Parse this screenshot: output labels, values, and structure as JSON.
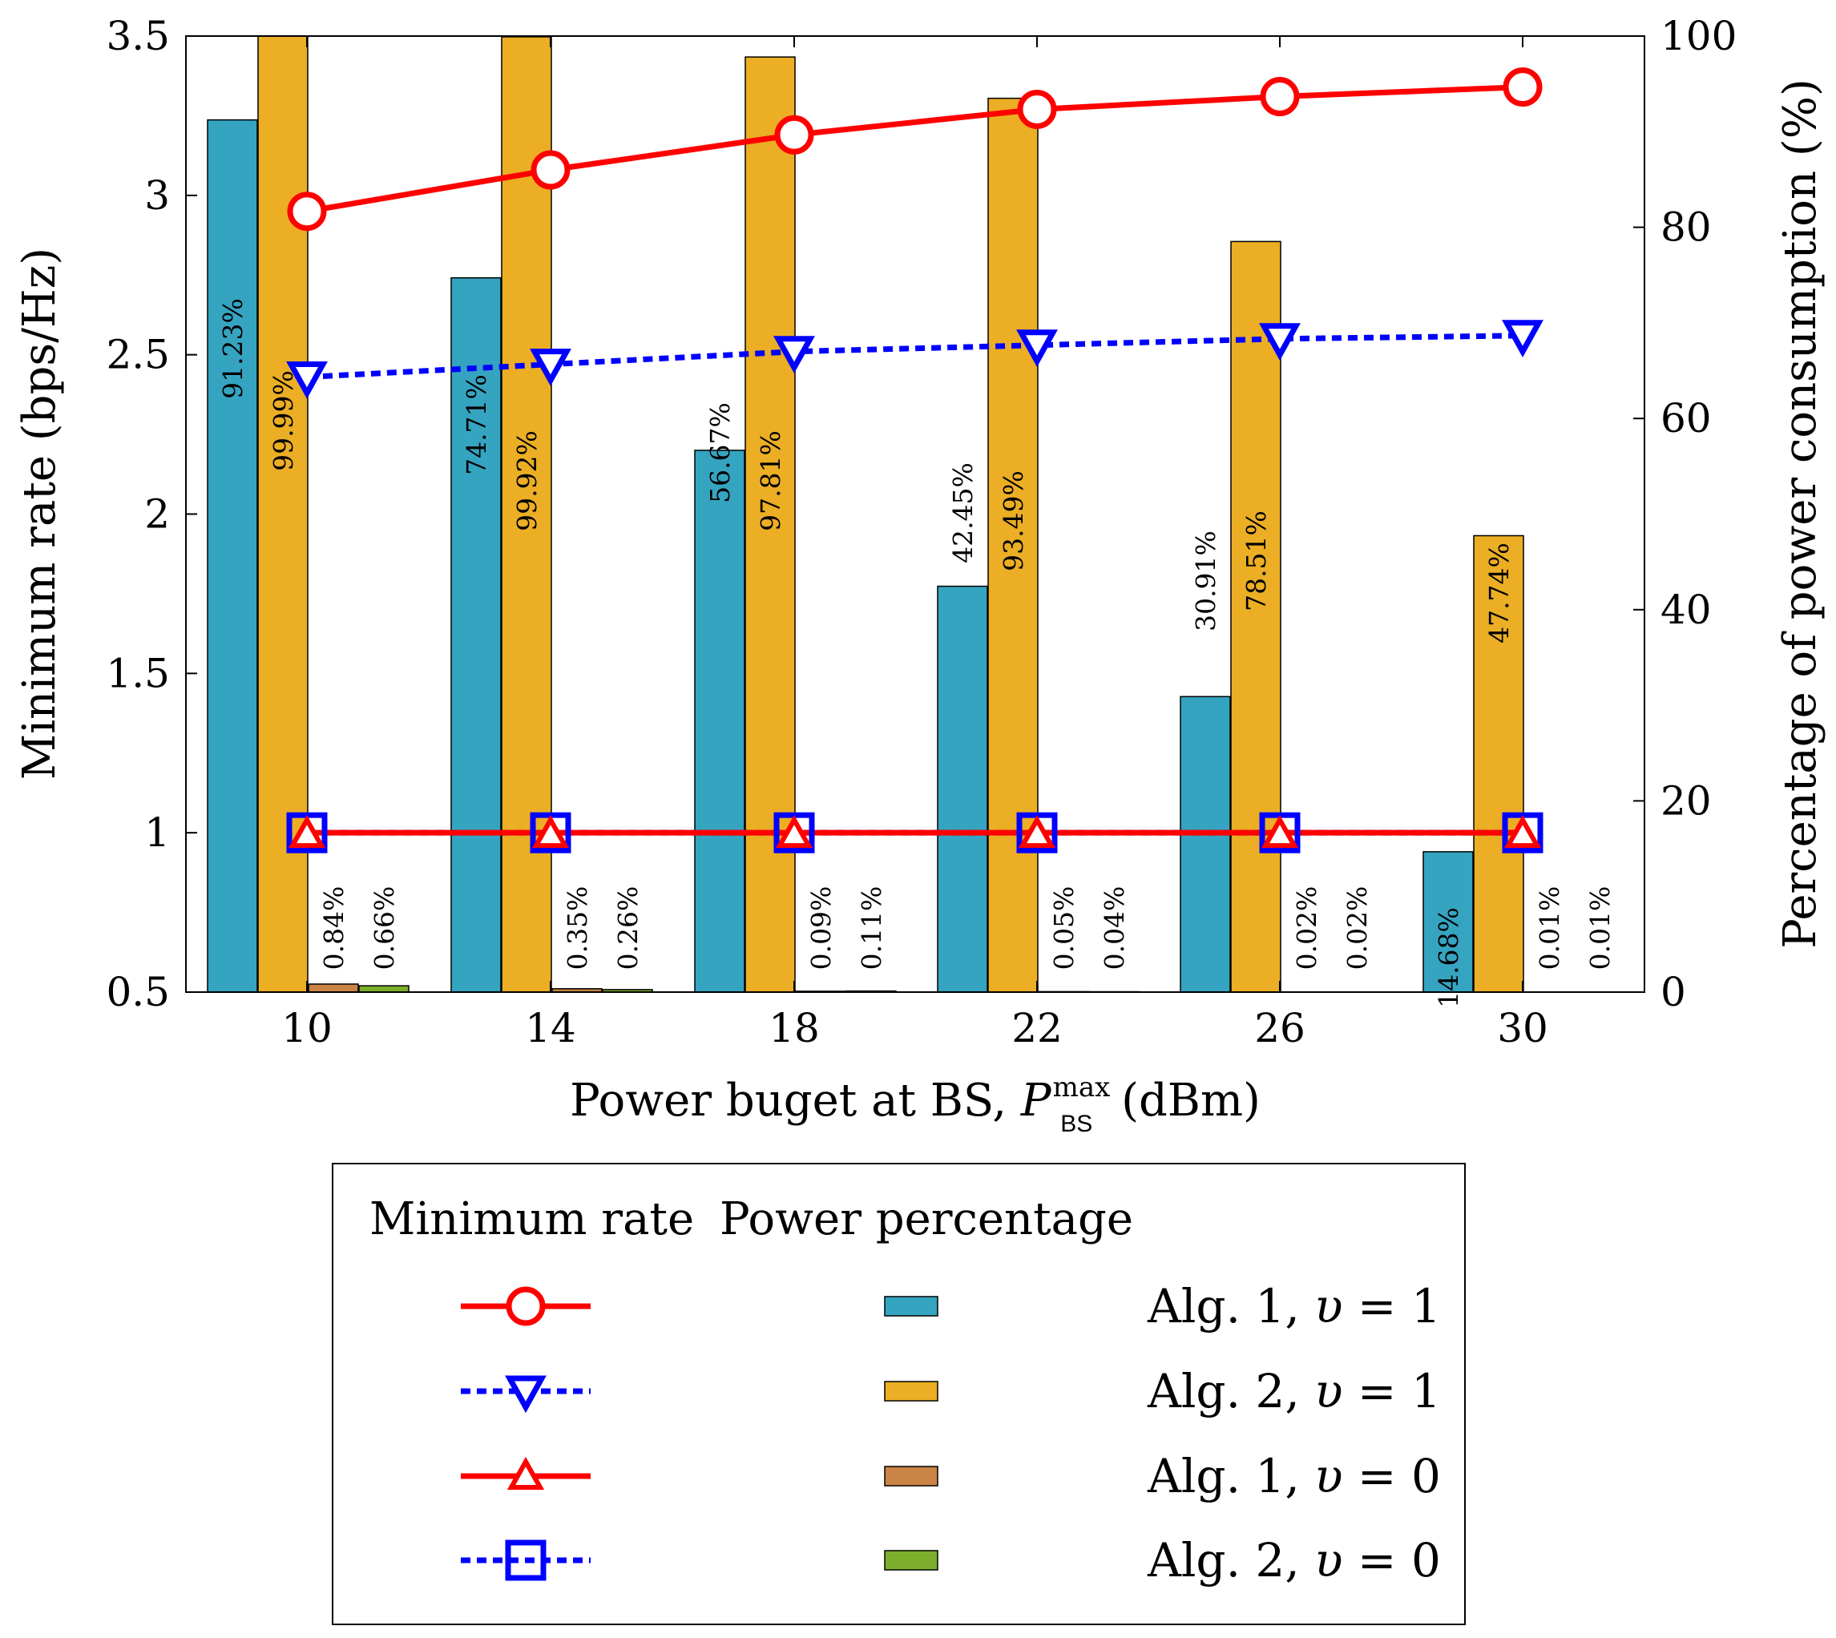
{
  "chart_data": {
    "type": "bar",
    "categories": [
      "10",
      "14",
      "18",
      "22",
      "26",
      "30"
    ],
    "xlabel": "Power buget at BS, ",
    "xlabel_symbol": "P",
    "xlabel_sub": "BS",
    "xlabel_sup": "max",
    "xlabel_unit": " (dBm)",
    "ylabel_left": "Minimum rate (bps/Hz)",
    "ylabel_right": "Percentage of power consumption (%)",
    "ylim_left": [
      0.5,
      3.5
    ],
    "yticks_left": [
      "0.5",
      "1",
      "1.5",
      "2",
      "2.5",
      "3",
      "3.5"
    ],
    "ylim_right": [
      0,
      100
    ],
    "yticks_right": [
      "0",
      "20",
      "40",
      "60",
      "80",
      "100"
    ],
    "bar_series": [
      {
        "name": "Alg. 1, υ = 1",
        "color": "#35a4c0",
        "values": [
          91.23,
          74.71,
          56.67,
          42.45,
          30.91,
          14.68
        ],
        "labels": [
          "91.23%",
          "74.71%",
          "56.67%",
          "42.45%",
          "30.91%",
          "14.68%"
        ]
      },
      {
        "name": "Alg. 2, υ = 1",
        "color": "#ebae24",
        "values": [
          99.99,
          99.92,
          97.81,
          93.49,
          78.51,
          47.74
        ],
        "labels": [
          "99.99%",
          "99.92%",
          "97.81%",
          "93.49%",
          "78.51%",
          "47.74%"
        ]
      },
      {
        "name": "Alg. 1, υ = 0",
        "color": "#c98445",
        "values": [
          0.84,
          0.35,
          0.09,
          0.05,
          0.02,
          0.01
        ],
        "labels": [
          "0.84%",
          "0.35%",
          "0.09%",
          "0.05%",
          "0.02%",
          "0.01%"
        ]
      },
      {
        "name": "Alg. 2, υ = 0",
        "color": "#7cae2c",
        "values": [
          0.66,
          0.26,
          0.11,
          0.04,
          0.02,
          0.01
        ],
        "labels": [
          "0.66%",
          "0.26%",
          "0.11%",
          "0.04%",
          "0.02%",
          "0.01%"
        ]
      }
    ],
    "line_series": [
      {
        "name": "Alg. 1, υ = 1",
        "color": "#ff0000",
        "dash": "solid",
        "marker": "circle",
        "values": [
          2.95,
          3.08,
          3.19,
          3.27,
          3.31,
          3.34
        ]
      },
      {
        "name": "Alg. 2, υ = 1",
        "color": "#0000ff",
        "dash": "dotted",
        "marker": "triangle-down",
        "values": [
          2.43,
          2.47,
          2.51,
          2.53,
          2.55,
          2.56
        ]
      },
      {
        "name": "Alg. 1, υ = 0",
        "color": "#ff0000",
        "dash": "solid",
        "marker": "triangle-up",
        "values": [
          1.0,
          1.0,
          1.0,
          1.0,
          1.0,
          1.0
        ]
      },
      {
        "name": "Alg. 2, υ = 0",
        "color": "#0000ff",
        "dash": "dotted",
        "marker": "square",
        "values": [
          1.0,
          1.0,
          1.0,
          1.0,
          1.0,
          1.0
        ]
      }
    ],
    "legend": {
      "position": "bottom",
      "header_rate": "Minimum rate",
      "header_power": "Power percentage",
      "entries": [
        {
          "label_prefix": "Alg. 1, ",
          "var": "υ",
          "label_suffix": " = 1"
        },
        {
          "label_prefix": "Alg. 2, ",
          "var": "υ",
          "label_suffix": " = 1"
        },
        {
          "label_prefix": "Alg. 1, ",
          "var": "υ",
          "label_suffix": " = 0"
        },
        {
          "label_prefix": "Alg. 2, ",
          "var": "υ",
          "label_suffix": " = 0"
        }
      ]
    }
  }
}
